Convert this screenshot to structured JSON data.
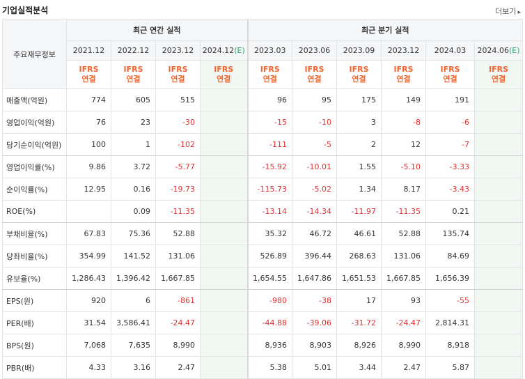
{
  "header": {
    "title": "기업실적분석",
    "more_label": "더보기"
  },
  "table": {
    "row_header_label": "주요재무정보",
    "group_annual": "최근 연간 실적",
    "group_quarterly": "최근 분기 실적",
    "annual_periods": [
      "2021.12",
      "2022.12",
      "2023.12",
      "2024.12"
    ],
    "annual_estimate_suffix": "(E)",
    "quarter_periods": [
      "2023.03",
      "2023.06",
      "2023.09",
      "2023.12",
      "2024.03",
      "2024.06"
    ],
    "quarter_estimate_suffix": "(E)",
    "ifrs_label": "IFRS",
    "consol_label": "연결",
    "rows": [
      {
        "label": "매출액(억원)",
        "values": [
          "774",
          "605",
          "515",
          "",
          "96",
          "95",
          "175",
          "149",
          "191",
          ""
        ]
      },
      {
        "label": "영업이익(억원)",
        "values": [
          "76",
          "23",
          "-30",
          "",
          "-15",
          "-10",
          "3",
          "-8",
          "-6",
          ""
        ]
      },
      {
        "label": "당기순이익(억원)",
        "values": [
          "100",
          "1",
          "-102",
          "",
          "-111",
          "-5",
          "2",
          "12",
          "-7",
          ""
        ]
      },
      {
        "label": "영업이익률(%)",
        "values": [
          "9.86",
          "3.72",
          "-5.77",
          "",
          "-15.92",
          "-10.01",
          "1.55",
          "-5.10",
          "-3.33",
          ""
        ]
      },
      {
        "label": "순이익률(%)",
        "values": [
          "12.95",
          "0.16",
          "-19.73",
          "",
          "-115.73",
          "-5.02",
          "1.34",
          "8.17",
          "-3.43",
          ""
        ]
      },
      {
        "label": "ROE(%)",
        "values": [
          "",
          "0.09",
          "-11.35",
          "",
          "-13.14",
          "-14.34",
          "-11.97",
          "-11.35",
          "0.21",
          ""
        ]
      },
      {
        "label": "부채비율(%)",
        "values": [
          "67.83",
          "75.36",
          "52.88",
          "",
          "35.32",
          "46.72",
          "46.61",
          "52.88",
          "135.74",
          ""
        ]
      },
      {
        "label": "당좌비율(%)",
        "values": [
          "354.99",
          "141.52",
          "131.06",
          "",
          "526.89",
          "396.44",
          "268.63",
          "131.06",
          "84.69",
          ""
        ]
      },
      {
        "label": "유보율(%)",
        "values": [
          "1,286.43",
          "1,396.42",
          "1,667.85",
          "",
          "1,654.55",
          "1,647.86",
          "1,651.53",
          "1,667.85",
          "1,656.39",
          ""
        ]
      },
      {
        "label": "EPS(원)",
        "values": [
          "920",
          "6",
          "-861",
          "",
          "-980",
          "-38",
          "17",
          "93",
          "-55",
          ""
        ]
      },
      {
        "label": "PER(배)",
        "values": [
          "31.54",
          "3,586.41",
          "-24.47",
          "",
          "-44.88",
          "-39.06",
          "-31.72",
          "-24.47",
          "2,814.31",
          ""
        ]
      },
      {
        "label": "BPS(원)",
        "values": [
          "7,068",
          "7,635",
          "8,990",
          "",
          "8,936",
          "8,903",
          "8,926",
          "8,990",
          "8,918",
          ""
        ]
      },
      {
        "label": "PBR(배)",
        "values": [
          "4.33",
          "3.16",
          "2.47",
          "",
          "5.38",
          "5.01",
          "3.44",
          "2.47",
          "5.87",
          ""
        ]
      }
    ]
  },
  "colors": {
    "accent_orange": "#f2662e",
    "negative_red": "#e03131",
    "estimate_green": "#2fa36b",
    "estimate_bg": "#f1f7f3"
  }
}
